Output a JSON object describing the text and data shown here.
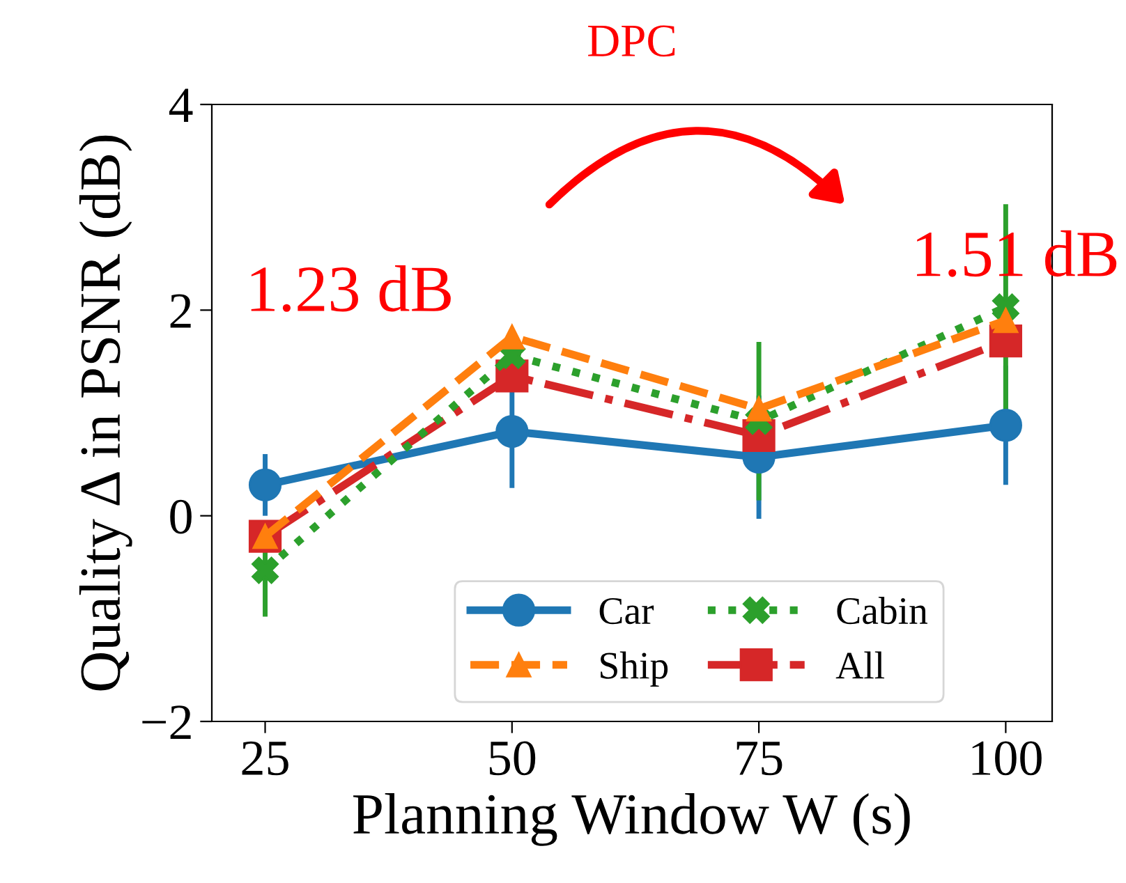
{
  "chart_data": {
    "type": "line",
    "title": "DPC",
    "xlabel": "Planning Window W (s)",
    "ylabel": "Quality Δ in PSNR (dB)",
    "x": [
      25,
      50,
      75,
      100
    ],
    "xlim": [
      19.6,
      104.7
    ],
    "xticks": [
      25,
      50,
      75,
      100
    ],
    "ylim": [
      -2,
      4
    ],
    "yticks": [
      {
        "value": -2,
        "label": "−2"
      },
      0,
      2,
      4
    ],
    "series": [
      {
        "name": "Car",
        "color": "#1f77b4",
        "marker": "circle",
        "line_style": "solid",
        "values": [
          0.3,
          0.82,
          0.57,
          0.88
        ],
        "errors": [
          0.3,
          0.55,
          0.6,
          0.58
        ]
      },
      {
        "name": "Ship",
        "color": "#ff7f0e",
        "marker": "triangle",
        "line_style": "dashed",
        "values": [
          -0.2,
          1.74,
          1.04,
          1.9
        ]
      },
      {
        "name": "Cabin",
        "color": "#2ca02c",
        "marker": "cross",
        "line_style": "dotted",
        "values": [
          -0.53,
          1.56,
          0.92,
          2.03
        ],
        "errors": [
          0.45,
          null,
          0.77,
          1.0
        ]
      },
      {
        "name": "All",
        "color": "#d62728",
        "marker": "square",
        "line_style": "dashdot",
        "values": [
          -0.2,
          1.36,
          0.78,
          1.7
        ]
      }
    ],
    "annotations": [
      {
        "text": "1.23 dB",
        "x": 50,
        "y": 1.63
      },
      {
        "text": "1.51 dB",
        "x": 100,
        "y": 1.97
      }
    ],
    "legend": "bottom",
    "grid": false
  }
}
